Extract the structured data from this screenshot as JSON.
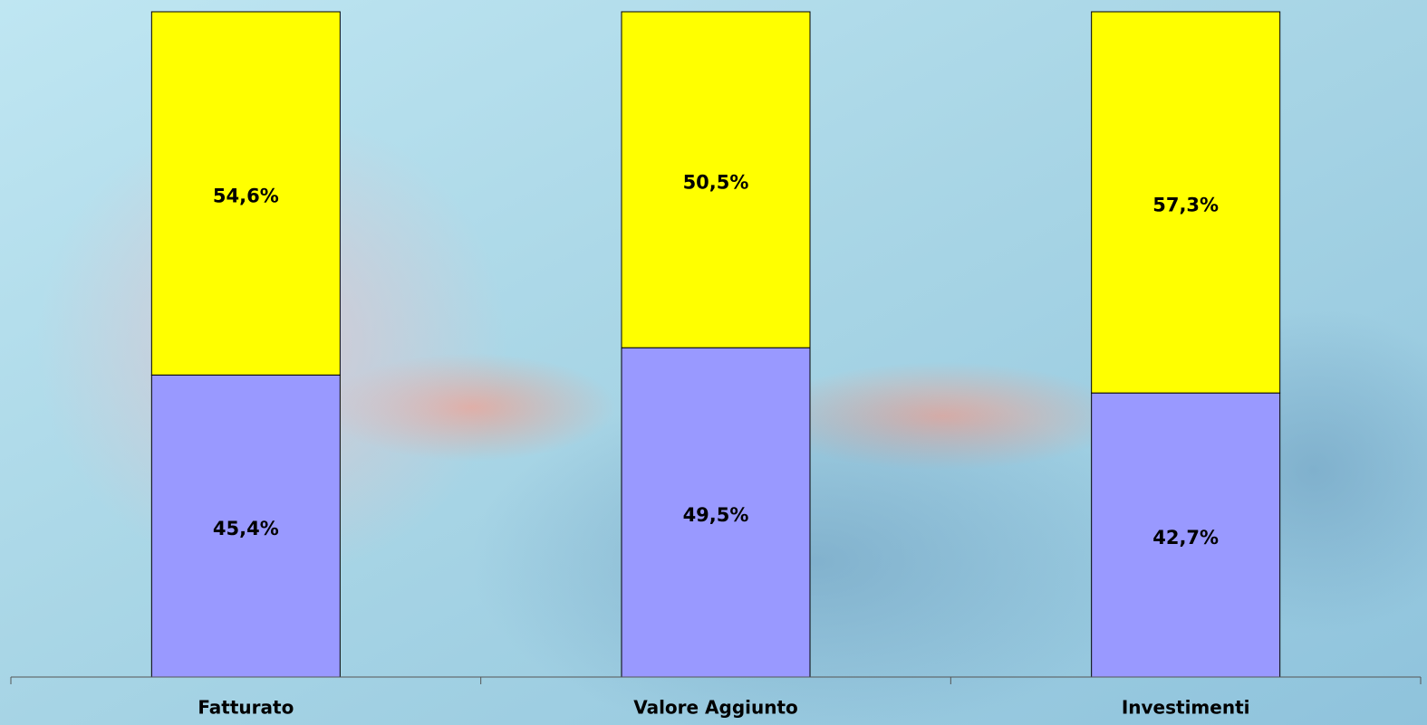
{
  "chart_data": {
    "type": "stacked_bar",
    "categories": [
      "Fatturato",
      "Valore Aggiunto",
      "Investimenti"
    ],
    "series": [
      {
        "color": "#9999ff",
        "values": [
          45.4,
          49.5,
          42.7
        ],
        "value_labels": [
          "45,4%",
          "49,5%",
          "42,7%"
        ]
      },
      {
        "color": "#ffff00",
        "values": [
          54.6,
          50.5,
          57.3
        ],
        "value_labels": [
          "54,6%",
          "50,5%",
          "57,3%"
        ]
      }
    ],
    "ylim": [
      0,
      100
    ]
  }
}
